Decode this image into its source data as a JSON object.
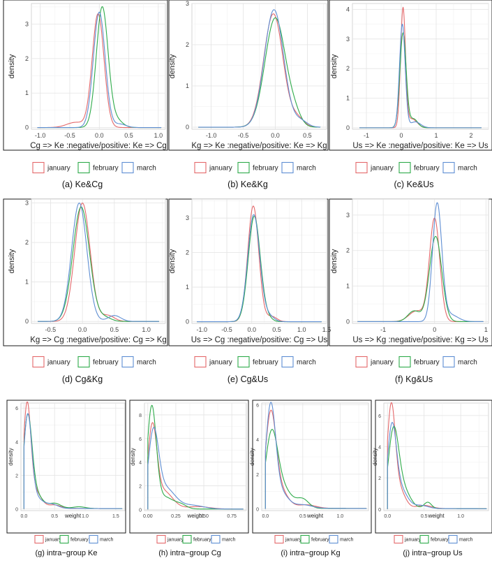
{
  "legend": {
    "entries": [
      {
        "name": "january",
        "color": "#e4686a"
      },
      {
        "name": "february",
        "color": "#2eab4a"
      },
      {
        "name": "march",
        "color": "#5e8ed3"
      }
    ]
  },
  "chart_data": [
    {
      "type": "line",
      "caption": "(a) Ke&Cg",
      "ylabel": "density",
      "xlabel": "Cg => Ke :negative/positive: Ke => Cg",
      "xlim": [
        -1.15,
        1.12
      ],
      "ylim": [
        -0.05,
        3.6
      ],
      "xticks": [
        -1.0,
        -0.5,
        0.0,
        0.5,
        1.0
      ],
      "xtick_labels": [
        "-1.0",
        "-0.5",
        "0.0",
        "0.5",
        "1.0"
      ],
      "yticks": [
        0,
        1,
        2,
        3
      ],
      "ytick_labels": [
        "0",
        "1",
        "2",
        "3"
      ],
      "x_range": [
        -1.05,
        1.05
      ],
      "base": 0,
      "series": [
        {
          "color": "#e4686a",
          "peaks": [
            [
              3.3,
              -0.02,
              0.1
            ],
            [
              0.15,
              -0.4,
              0.15
            ]
          ]
        },
        {
          "color": "#2eab4a",
          "peaks": [
            [
              3.5,
              0.05,
              0.1
            ],
            [
              0.2,
              0.3,
              0.1
            ]
          ]
        },
        {
          "color": "#5e8ed3",
          "peaks": [
            [
              3.35,
              0.0,
              0.1
            ],
            [
              0.1,
              0.35,
              0.1
            ]
          ]
        }
      ]
    },
    {
      "type": "line",
      "caption": "(b) Ke&Kg",
      "ylabel": "density",
      "xlabel": "Kg => Ke :negative/positive: Ke => Kg",
      "xlim": [
        -1.3,
        0.8
      ],
      "ylim": [
        -0.05,
        3.0
      ],
      "xticks": [
        -1.0,
        -0.5,
        0.0,
        0.5
      ],
      "xtick_labels": [
        "-1.0",
        "-0.5",
        "0.0",
        "0.5"
      ],
      "yticks": [
        0,
        1,
        2,
        3
      ],
      "ytick_labels": [
        "0",
        "1",
        "2",
        "3"
      ],
      "x_range": [
        -1.2,
        0.7
      ],
      "base": 0,
      "series": [
        {
          "color": "#e4686a",
          "peaks": [
            [
              2.75,
              -0.03,
              0.15
            ],
            [
              0.2,
              0.35,
              0.1
            ]
          ]
        },
        {
          "color": "#2eab4a",
          "peaks": [
            [
              2.65,
              0.0,
              0.16
            ],
            [
              0.25,
              0.3,
              0.1
            ]
          ]
        },
        {
          "color": "#5e8ed3",
          "peaks": [
            [
              2.85,
              -0.02,
              0.15
            ],
            [
              0.15,
              0.4,
              0.1
            ]
          ]
        }
      ]
    },
    {
      "type": "line",
      "caption": "(c) Ke&Us",
      "ylabel": "density",
      "xlabel": "Us => Ke :negative/positive: Ke => Us",
      "xlim": [
        -1.4,
        2.5
      ],
      "ylim": [
        -0.05,
        4.2
      ],
      "xticks": [
        -1,
        0,
        1,
        2
      ],
      "xtick_labels": [
        "-1",
        "0",
        "1",
        "2"
      ],
      "yticks": [
        0,
        1,
        2,
        3,
        4
      ],
      "ytick_labels": [
        "0",
        "1",
        "2",
        "3",
        "4"
      ],
      "x_range": [
        -1.2,
        2.3
      ],
      "base": 0,
      "series": [
        {
          "color": "#e4686a",
          "peaks": [
            [
              4.0,
              0.05,
              0.07
            ],
            [
              0.3,
              0.3,
              0.15
            ]
          ]
        },
        {
          "color": "#2eab4a",
          "peaks": [
            [
              3.2,
              0.05,
              0.09
            ],
            [
              0.3,
              0.35,
              0.12
            ]
          ]
        },
        {
          "color": "#5e8ed3",
          "peaks": [
            [
              3.5,
              0.03,
              0.08
            ],
            [
              0.2,
              0.4,
              0.15
            ]
          ]
        }
      ]
    },
    {
      "type": "line",
      "caption": "(d) Cg&Kg",
      "ylabel": "density",
      "xlabel": "Kg => Cg :negative/positive: Cg => Kg",
      "xlim": [
        -0.8,
        1.3
      ],
      "ylim": [
        -0.05,
        3.1
      ],
      "xticks": [
        -0.5,
        0.0,
        0.5,
        1.0
      ],
      "xtick_labels": [
        "-0.5",
        "0.0",
        "0.5",
        "1.0"
      ],
      "yticks": [
        0,
        1,
        2,
        3
      ],
      "ytick_labels": [
        "0",
        "1",
        "2",
        "3"
      ],
      "x_range": [
        -0.7,
        1.2
      ],
      "base": 0,
      "series": [
        {
          "color": "#e4686a",
          "peaks": [
            [
              3.0,
              0.0,
              0.12
            ],
            [
              0.15,
              0.4,
              0.1
            ]
          ]
        },
        {
          "color": "#2eab4a",
          "peaks": [
            [
              2.9,
              -0.02,
              0.13
            ],
            [
              0.1,
              0.35,
              0.1
            ]
          ]
        },
        {
          "color": "#5e8ed3",
          "peaks": [
            [
              3.0,
              -0.05,
              0.12
            ],
            [
              0.15,
              0.5,
              0.1
            ]
          ]
        }
      ]
    },
    {
      "type": "line",
      "caption": "(e) Cg&Us",
      "ylabel": "density",
      "xlabel": "Us => Cg :negative/positive: Cg => Us",
      "xlim": [
        -1.2,
        1.5
      ],
      "ylim": [
        -0.05,
        3.55
      ],
      "xticks": [
        -1.0,
        -0.5,
        0.0,
        0.5,
        1.0,
        1.5
      ],
      "xtick_labels": [
        "-1.0",
        "-0.5",
        "0.0",
        "0.5",
        "1.0",
        "1.5"
      ],
      "yticks": [
        0,
        1,
        2,
        3
      ],
      "ytick_labels": [
        "0",
        "1",
        "2",
        "3"
      ],
      "x_range": [
        -1.1,
        1.4
      ],
      "base": 0,
      "series": [
        {
          "color": "#e4686a",
          "peaks": [
            [
              3.35,
              0.03,
              0.11
            ],
            [
              0.15,
              0.4,
              0.1
            ]
          ]
        },
        {
          "color": "#2eab4a",
          "peaks": [
            [
              3.05,
              0.05,
              0.12
            ],
            [
              0.1,
              0.3,
              0.1
            ]
          ]
        },
        {
          "color": "#5e8ed3",
          "peaks": [
            [
              3.1,
              0.04,
              0.12
            ],
            [
              0.15,
              0.35,
              0.1
            ]
          ]
        }
      ]
    },
    {
      "type": "line",
      "caption": "(f) Kg&Us",
      "ylabel": "density",
      "xlabel": "Us => Kg :negative/positive: Kg => Us",
      "xlim": [
        -1.6,
        1.05
      ],
      "ylim": [
        -0.05,
        3.45
      ],
      "xticks": [
        -1,
        0,
        1
      ],
      "xtick_labels": [
        "-1",
        "0",
        "1"
      ],
      "yticks": [
        0,
        1,
        2,
        3
      ],
      "ytick_labels": [
        "0",
        "1",
        "2",
        "3"
      ],
      "x_range": [
        -1.5,
        0.95
      ],
      "base": 0,
      "series": [
        {
          "color": "#e4686a",
          "peaks": [
            [
              2.9,
              0.0,
              0.1
            ],
            [
              0.3,
              -0.35,
              0.15
            ]
          ]
        },
        {
          "color": "#2eab4a",
          "peaks": [
            [
              2.4,
              0.02,
              0.12
            ],
            [
              0.3,
              -0.4,
              0.12
            ]
          ]
        },
        {
          "color": "#5e8ed3",
          "peaks": [
            [
              3.3,
              0.05,
              0.09
            ],
            [
              0.2,
              0.3,
              0.15
            ]
          ]
        }
      ]
    },
    {
      "type": "line",
      "caption": "(g) intra−group Ke",
      "ylabel": "density",
      "xlabel": "weight",
      "xlim": [
        -0.05,
        1.65
      ],
      "ylim": [
        -0.1,
        6.3
      ],
      "xticks": [
        0.0,
        0.5,
        1.0,
        1.5
      ],
      "xtick_labels": [
        "0.0",
        "0.5",
        "1.0",
        "1.5"
      ],
      "yticks": [
        0,
        2,
        4,
        6
      ],
      "ytick_labels": [
        "0",
        "2",
        "4",
        "6"
      ],
      "x_range": [
        0.0,
        1.6
      ],
      "base": 0.05,
      "series": [
        {
          "color": "#e4686a",
          "peaks": [
            [
              5.9,
              0.05,
              0.06
            ],
            [
              1.0,
              0.18,
              0.1
            ],
            [
              0.2,
              0.5,
              0.1
            ]
          ]
        },
        {
          "color": "#2eab4a",
          "peaks": [
            [
              5.3,
              0.06,
              0.07
            ],
            [
              0.8,
              0.2,
              0.1
            ],
            [
              0.3,
              0.5,
              0.1
            ],
            [
              0.1,
              0.9,
              0.1
            ]
          ]
        },
        {
          "color": "#5e8ed3",
          "peaks": [
            [
              5.4,
              0.06,
              0.065
            ],
            [
              0.6,
              0.2,
              0.1
            ],
            [
              0.25,
              0.45,
              0.1
            ]
          ]
        }
      ]
    },
    {
      "type": "line",
      "caption": "(h) intra−group Cg",
      "ylabel": "density",
      "xlabel": "weight",
      "xlim": [
        -0.03,
        0.88
      ],
      "ylim": [
        -0.1,
        9.0
      ],
      "xticks": [
        0.0,
        0.25,
        0.5,
        0.75
      ],
      "xtick_labels": [
        "0.00",
        "0.25",
        "0.50",
        "0.75"
      ],
      "yticks": [
        0,
        2,
        4,
        6,
        8
      ],
      "ytick_labels": [
        "0",
        "2",
        "4",
        "6",
        "8"
      ],
      "x_range": [
        0.0,
        0.85
      ],
      "base": 0.05,
      "series": [
        {
          "color": "#e4686a",
          "peaks": [
            [
              6.6,
              0.04,
              0.04
            ],
            [
              1.5,
              0.14,
              0.08
            ],
            [
              0.2,
              0.45,
              0.1
            ]
          ]
        },
        {
          "color": "#2eab4a",
          "peaks": [
            [
              8.4,
              0.035,
              0.04
            ],
            [
              1.0,
              0.15,
              0.08
            ],
            [
              0.3,
              0.3,
              0.05
            ]
          ]
        },
        {
          "color": "#5e8ed3",
          "peaks": [
            [
              5.9,
              0.05,
              0.045
            ],
            [
              1.8,
              0.15,
              0.09
            ],
            [
              0.3,
              0.4,
              0.1
            ]
          ]
        }
      ]
    },
    {
      "type": "line",
      "caption": "(i) intra−group Kg",
      "ylabel": "density",
      "xlabel": "weight",
      "xlim": [
        -0.05,
        1.38
      ],
      "ylim": [
        -0.1,
        6.1
      ],
      "xticks": [
        0.0,
        0.5,
        1.0
      ],
      "xtick_labels": [
        "0.0",
        "0.5",
        "1.0"
      ],
      "yticks": [
        0,
        2,
        4,
        6
      ],
      "ytick_labels": [
        "0",
        "2",
        "4",
        "6"
      ],
      "x_range": [
        0.0,
        1.35
      ],
      "base": 0.05,
      "series": [
        {
          "color": "#e4686a",
          "peaks": [
            [
              5.2,
              0.07,
              0.07
            ],
            [
              1.0,
              0.2,
              0.1
            ],
            [
              0.2,
              0.55,
              0.12
            ]
          ]
        },
        {
          "color": "#2eab4a",
          "peaks": [
            [
              3.9,
              0.08,
              0.08
            ],
            [
              1.2,
              0.22,
              0.12
            ],
            [
              0.5,
              0.5,
              0.08
            ]
          ]
        },
        {
          "color": "#5e8ed3",
          "peaks": [
            [
              5.7,
              0.07,
              0.065
            ],
            [
              0.9,
              0.2,
              0.1
            ],
            [
              0.2,
              0.5,
              0.12
            ]
          ]
        }
      ]
    },
    {
      "type": "line",
      "caption": "(j) intra−group Us",
      "ylabel": "density",
      "xlabel": "weight",
      "xlim": [
        -0.05,
        1.38
      ],
      "ylim": [
        -0.1,
        6.8
      ],
      "xticks": [
        0.0,
        0.5,
        1.0
      ],
      "xtick_labels": [
        "0.0",
        "0.5",
        "1.0"
      ],
      "yticks": [
        0,
        2,
        4,
        6
      ],
      "ytick_labels": [
        "0",
        "2",
        "4",
        "6"
      ],
      "x_range": [
        0.0,
        1.35
      ],
      "base": 0.05,
      "series": [
        {
          "color": "#e4686a",
          "peaks": [
            [
              6.3,
              0.05,
              0.055
            ],
            [
              1.2,
              0.16,
              0.08
            ],
            [
              0.2,
              0.5,
              0.1
            ]
          ]
        },
        {
          "color": "#2eab4a",
          "peaks": [
            [
              4.6,
              0.08,
              0.07
            ],
            [
              1.3,
              0.2,
              0.1
            ],
            [
              0.4,
              0.55,
              0.05
            ]
          ]
        },
        {
          "color": "#5e8ed3",
          "peaks": [
            [
              5.0,
              0.06,
              0.06
            ],
            [
              1.2,
              0.18,
              0.09
            ],
            [
              0.2,
              0.45,
              0.1
            ]
          ]
        }
      ]
    }
  ]
}
